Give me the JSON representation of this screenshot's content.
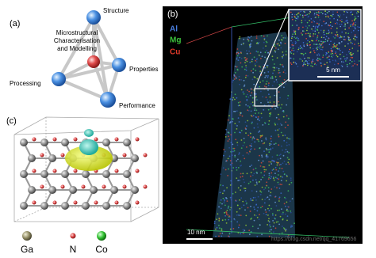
{
  "panel_a": {
    "label": "(a)",
    "center_text": [
      "Microstructural",
      "Characterisation",
      "and Modelling"
    ],
    "nodes": [
      "Structure",
      "Properties",
      "Processing",
      "Performance"
    ]
  },
  "panel_b": {
    "label": "(b)",
    "elements": [
      "Al",
      "Mg",
      "Cu"
    ],
    "inset_scale": "5 nm",
    "scale": "10 nm",
    "watermark": "https://blog.csdn.net/qq_41769656"
  },
  "panel_c": {
    "label": "(c)",
    "legend": [
      "Ga",
      "N",
      "Co"
    ]
  }
}
